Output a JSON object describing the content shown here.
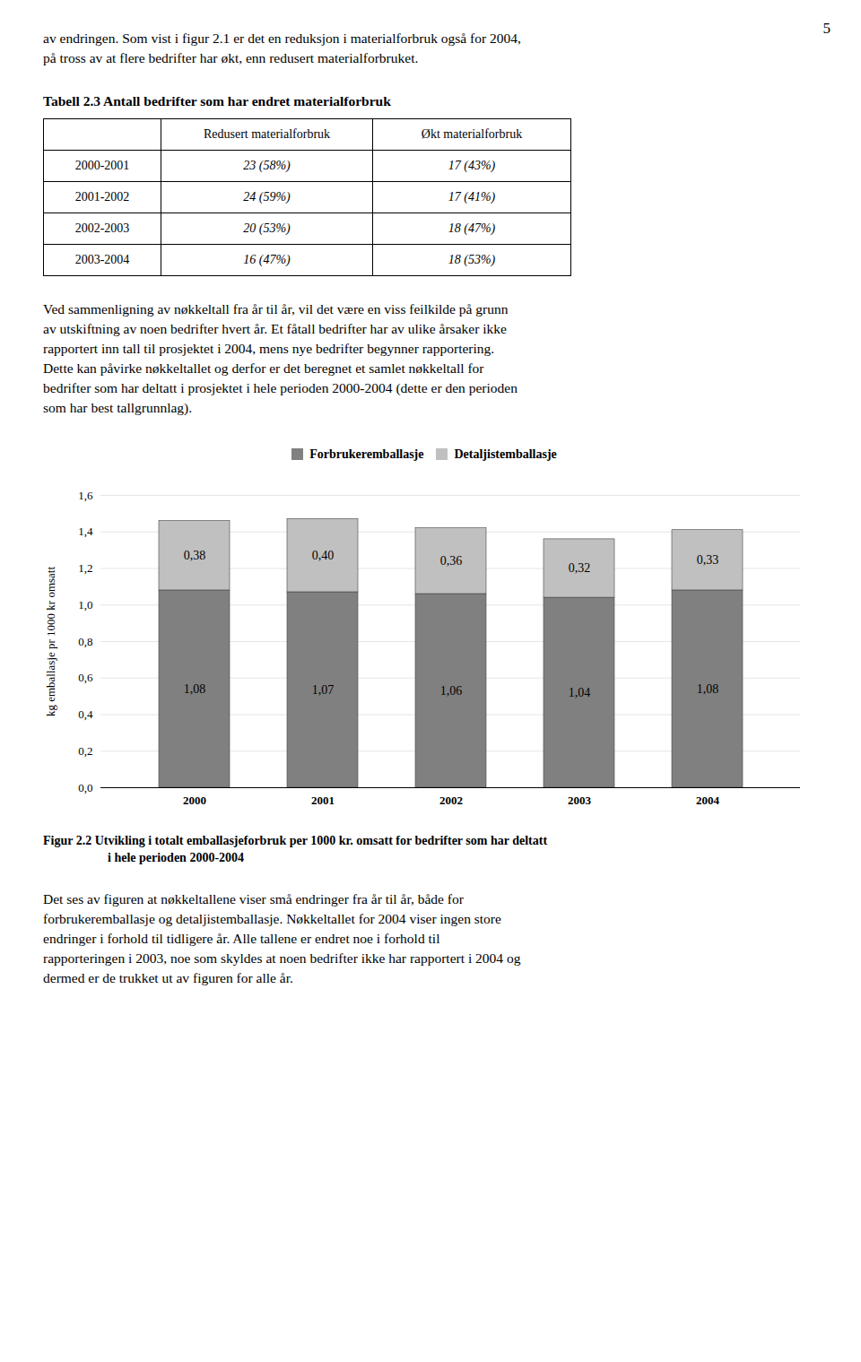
{
  "page_number": "5",
  "text_before": [
    "av endringen. Som vist i figur 2.1 er det en reduksjon i materialforbruk også for 2004,",
    "på tross av at flere bedrifter har økt, enn redusert materialforbruket."
  ],
  "table": {
    "title": "Tabell 2.3  Antall bedrifter som har endret materialforbruk",
    "headers": [
      "Redusert materialforbruk",
      "Økt materialforbruk"
    ],
    "rows": [
      [
        "2000-2001",
        "23 (58%)",
        "17 (43%)"
      ],
      [
        "2001-2002",
        "24 (59%)",
        "17 (41%)"
      ],
      [
        "2002-2003",
        "20 (53%)",
        "18 (47%)"
      ],
      [
        "2003-2004",
        "16 (47%)",
        "18 (53%)"
      ]
    ]
  },
  "text_middle": [
    "Ved sammenligning av nøkkeltall fra år til år, vil det være en viss feilkilde på grunn",
    "av utskiftning av noen bedrifter hvert år. Et fåtall bedrifter har av ulike årsaker ikke",
    "rapportert inn tall til prosjektet i 2004, mens nye bedrifter begynner rapportering.",
    "Dette kan påvirke nøkkeltallet og derfor er det beregnet et samlet nøkkeltall for",
    "bedrifter som har deltatt i prosjektet i hele perioden 2000-2004 (dette er den perioden",
    "som har best tallgrunnlag)."
  ],
  "chart_data": {
    "type": "bar",
    "stacked": true,
    "data_labels": true,
    "legend": "top",
    "grid": true,
    "caption": [
      "Figur 2.2  Utvikling i totalt emballasjeforbruk per 1000 kr. omsatt for bedrifter som har deltatt",
      "i hele perioden 2000-2004"
    ],
    "ylabel": "kg emballasje pr 1000 kr omsatt",
    "categories": [
      "2000",
      "2001",
      "2002",
      "2003",
      "2004"
    ],
    "series": [
      {
        "name": "Forbrukeremballasje",
        "color": "#808080",
        "values": [
          1.08,
          1.07,
          1.06,
          1.04,
          1.08
        ],
        "value_labels": [
          "1,08",
          "1,07",
          "1,06",
          "1,04",
          "1,08"
        ]
      },
      {
        "name": "Detaljistemballasje",
        "color": "#c0c0c0",
        "values": [
          0.38,
          0.4,
          0.36,
          0.32,
          0.33
        ],
        "value_labels": [
          "0,38",
          "0,40",
          "0,36",
          "0,32",
          "0,33"
        ]
      }
    ],
    "ylim": [
      0.0,
      1.6
    ],
    "yticks": [
      {
        "value": 0.0,
        "label": "0,0"
      },
      {
        "value": 0.2,
        "label": "0,2"
      },
      {
        "value": 0.4,
        "label": "0,4"
      },
      {
        "value": 0.6,
        "label": "0,6"
      },
      {
        "value": 0.8,
        "label": "0,8"
      },
      {
        "value": 1.0,
        "label": "1,0"
      },
      {
        "value": 1.2,
        "label": "1,2"
      },
      {
        "value": 1.4,
        "label": "1,4"
      },
      {
        "value": 1.6,
        "label": "1,6"
      }
    ]
  },
  "text_after": [
    "Det ses av figuren at nøkkeltallene viser små endringer fra år til år, både for",
    "forbrukeremballasje og detaljistemballasje. Nøkkeltallet for 2004 viser ingen store",
    "endringer i forhold til tidligere år. Alle tallene er endret noe i forhold til",
    "rapporteringen i 2003, noe som skyldes at noen bedrifter ikke har rapportert i 2004 og",
    "dermed er de trukket ut av figuren for alle år."
  ]
}
